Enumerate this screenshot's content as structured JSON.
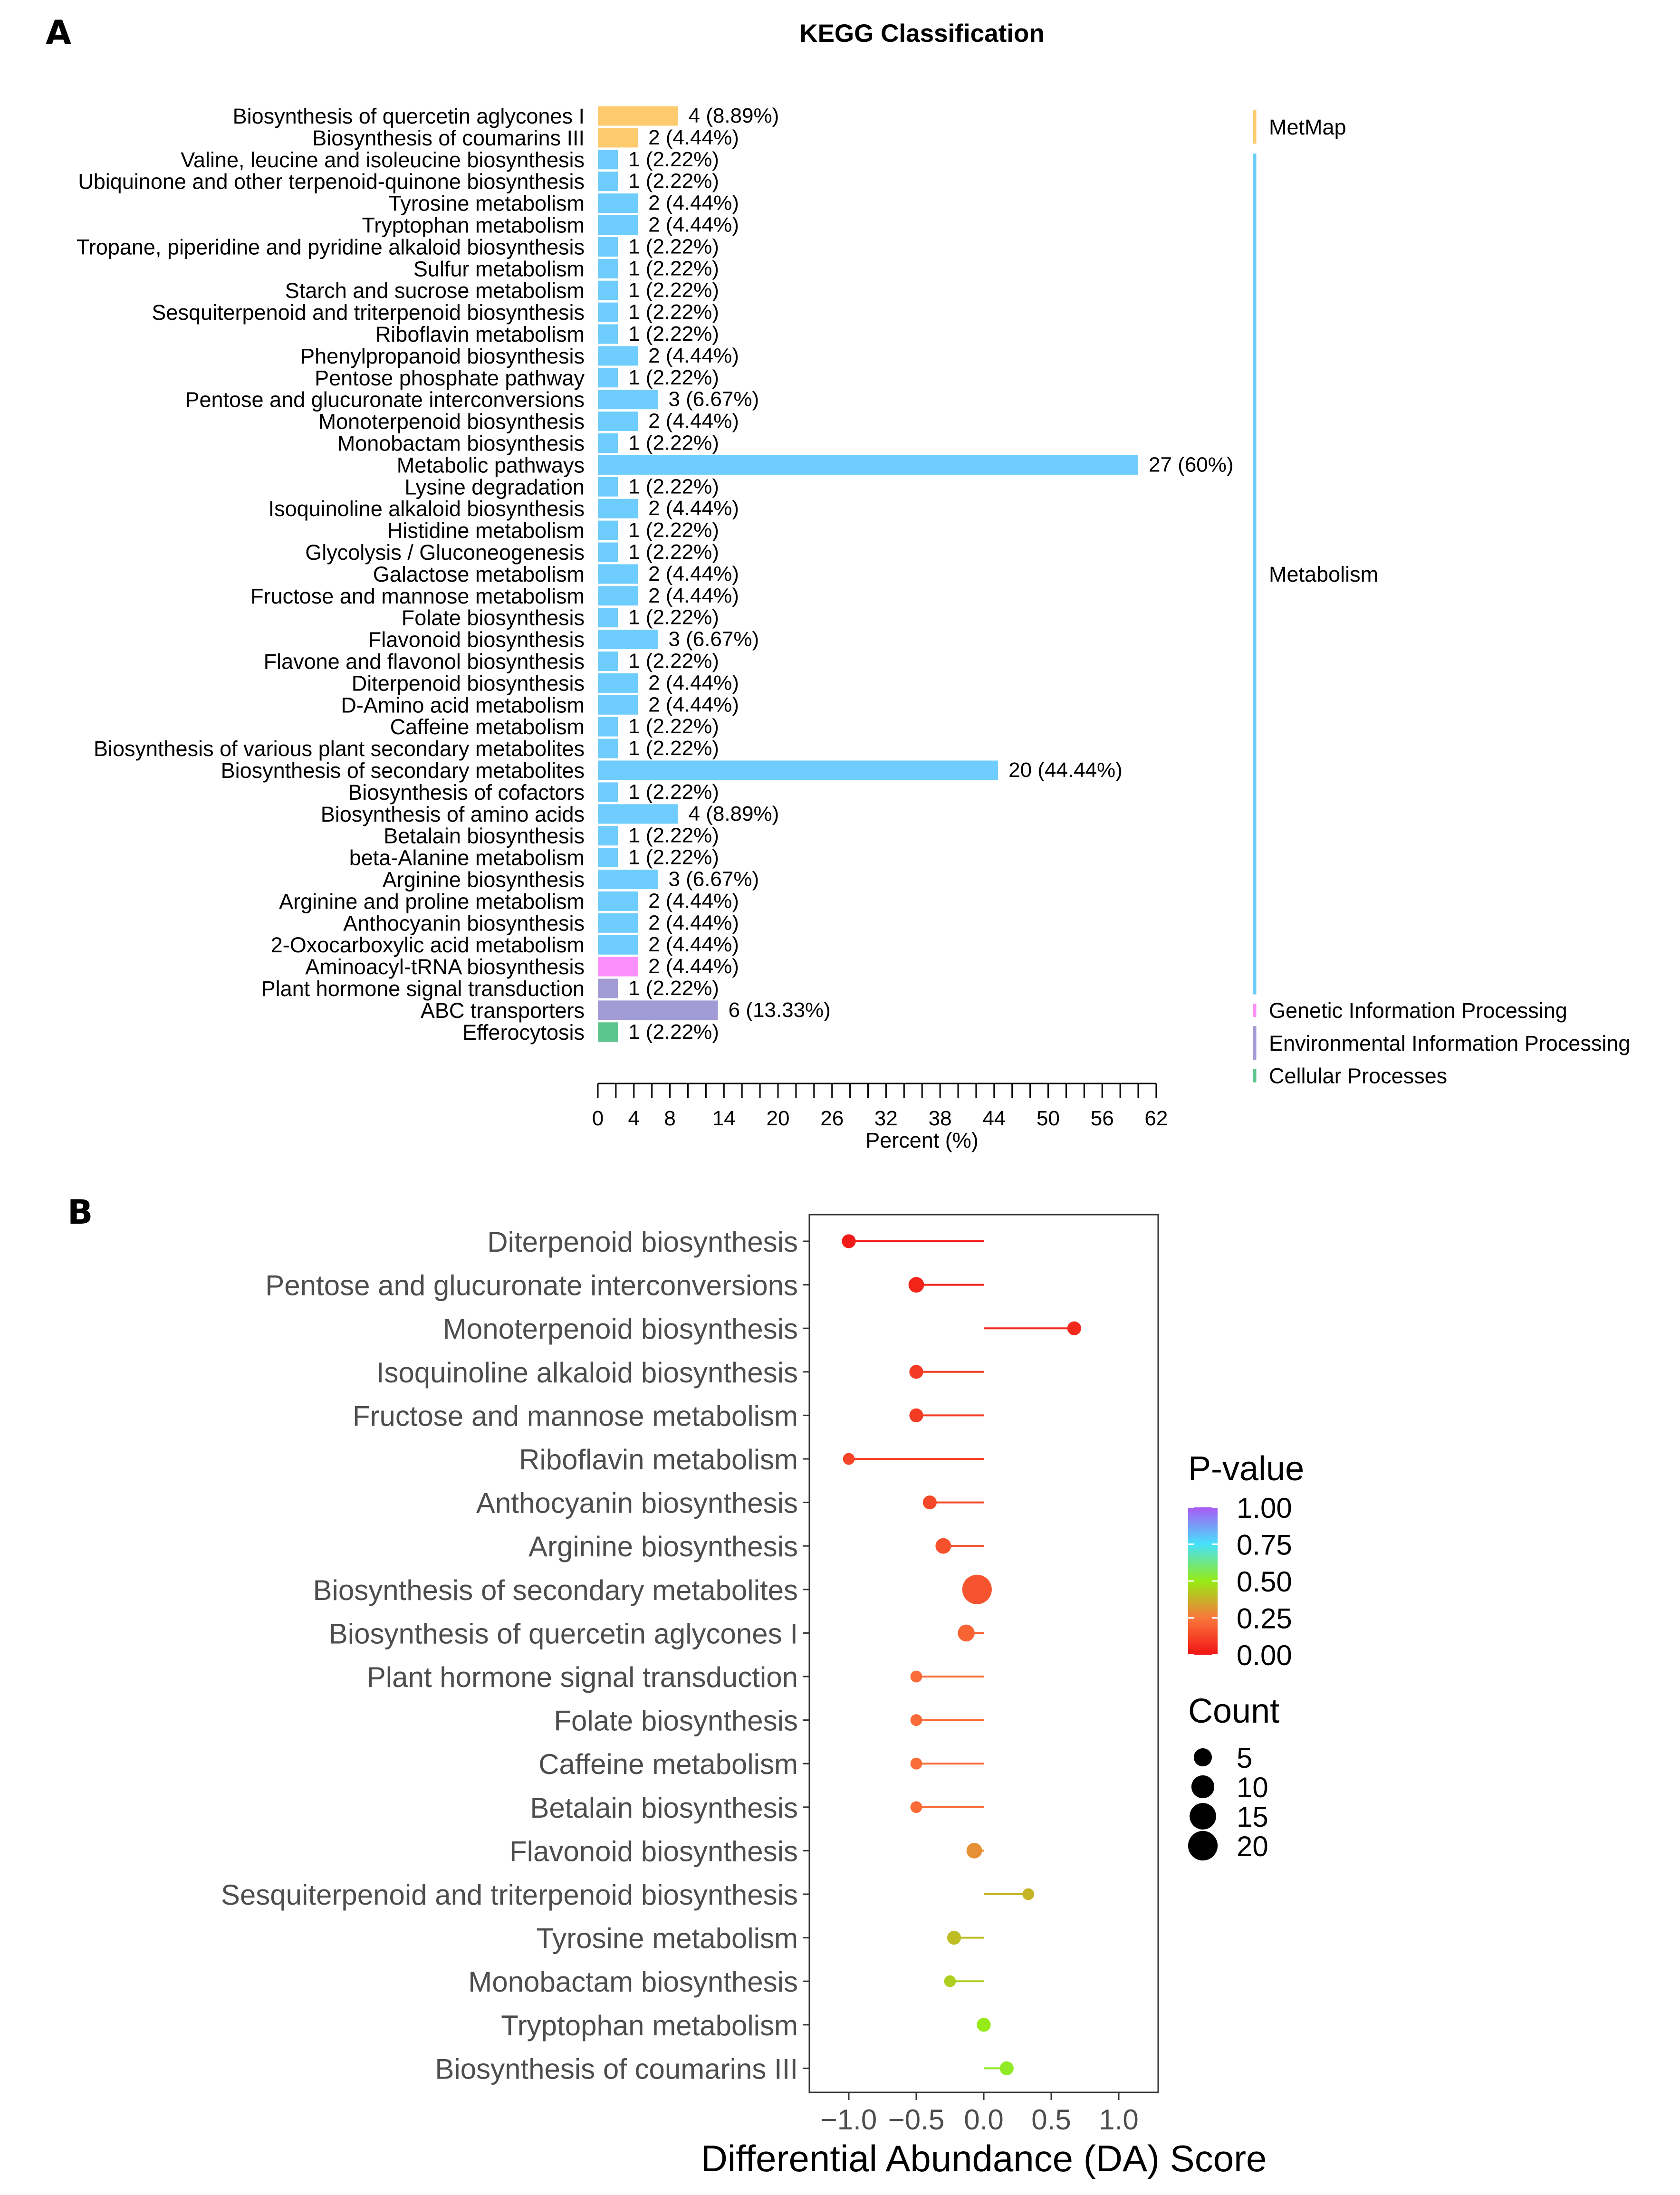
{
  "panel_a_label": "A",
  "panel_b_label": "B",
  "chart_data": [
    {
      "type": "bar",
      "title": "KEGG Classification",
      "xlabel": "Percent (%)",
      "ylabel": "",
      "xlim": [
        0,
        62
      ],
      "xticks": [
        "0",
        "4",
        "8",
        "14",
        "20",
        "26",
        "32",
        "38",
        "44",
        "50",
        "56",
        "62"
      ],
      "xtick_values": [
        0,
        4,
        8,
        14,
        20,
        26,
        32,
        38,
        44,
        50,
        56,
        62
      ],
      "legend_position": "right",
      "colors": {
        "MetMap": "#FDCB6E",
        "Metabolism": "#6ECDFC",
        "Genetic Information Processing": "#FC90FA",
        "Environmental Information Processing": "#A19BD6",
        "Cellular Processes": "#5DC58E"
      },
      "groups": [
        {
          "name": "MetMap",
          "first": 0,
          "last": 1
        },
        {
          "name": "Metabolism",
          "first": 2,
          "last": 40
        },
        {
          "name": "Genetic Information Processing",
          "first": 41,
          "last": 41
        },
        {
          "name": "Environmental Information Processing",
          "first": 42,
          "last": 43
        },
        {
          "name": "Cellular Processes",
          "first": 44,
          "last": 44
        }
      ],
      "bars": [
        {
          "category": "Biosynthesis of quercetin aglycones I",
          "count": 4,
          "value": 8.89,
          "label": "4 (8.89%)",
          "group": "MetMap"
        },
        {
          "category": "Biosynthesis of coumarins III",
          "count": 2,
          "value": 4.44,
          "label": "2 (4.44%)",
          "group": "MetMap"
        },
        {
          "category": "Valine, leucine and isoleucine biosynthesis",
          "count": 1,
          "value": 2.22,
          "label": "1 (2.22%)",
          "group": "Metabolism"
        },
        {
          "category": "Ubiquinone and other terpenoid-quinone biosynthesis",
          "count": 1,
          "value": 2.22,
          "label": "1 (2.22%)",
          "group": "Metabolism"
        },
        {
          "category": "Tyrosine metabolism",
          "count": 2,
          "value": 4.44,
          "label": "2 (4.44%)",
          "group": "Metabolism"
        },
        {
          "category": "Tryptophan metabolism",
          "count": 2,
          "value": 4.44,
          "label": "2 (4.44%)",
          "group": "Metabolism"
        },
        {
          "category": "Tropane, piperidine and pyridine alkaloid biosynthesis",
          "count": 1,
          "value": 2.22,
          "label": "1 (2.22%)",
          "group": "Metabolism"
        },
        {
          "category": "Sulfur metabolism",
          "count": 1,
          "value": 2.22,
          "label": "1 (2.22%)",
          "group": "Metabolism"
        },
        {
          "category": "Starch and sucrose metabolism",
          "count": 1,
          "value": 2.22,
          "label": "1 (2.22%)",
          "group": "Metabolism"
        },
        {
          "category": "Sesquiterpenoid and triterpenoid biosynthesis",
          "count": 1,
          "value": 2.22,
          "label": "1 (2.22%)",
          "group": "Metabolism"
        },
        {
          "category": "Riboflavin metabolism",
          "count": 1,
          "value": 2.22,
          "label": "1 (2.22%)",
          "group": "Metabolism"
        },
        {
          "category": "Phenylpropanoid biosynthesis",
          "count": 2,
          "value": 4.44,
          "label": "2 (4.44%)",
          "group": "Metabolism"
        },
        {
          "category": "Pentose phosphate pathway",
          "count": 1,
          "value": 2.22,
          "label": "1 (2.22%)",
          "group": "Metabolism"
        },
        {
          "category": "Pentose and glucuronate interconversions",
          "count": 3,
          "value": 6.67,
          "label": "3 (6.67%)",
          "group": "Metabolism"
        },
        {
          "category": "Monoterpenoid biosynthesis",
          "count": 2,
          "value": 4.44,
          "label": "2 (4.44%)",
          "group": "Metabolism"
        },
        {
          "category": "Monobactam biosynthesis",
          "count": 1,
          "value": 2.22,
          "label": "1 (2.22%)",
          "group": "Metabolism"
        },
        {
          "category": "Metabolic pathways",
          "count": 27,
          "value": 60,
          "label": "27 (60%)",
          "group": "Metabolism"
        },
        {
          "category": "Lysine degradation",
          "count": 1,
          "value": 2.22,
          "label": "1 (2.22%)",
          "group": "Metabolism"
        },
        {
          "category": "Isoquinoline alkaloid biosynthesis",
          "count": 2,
          "value": 4.44,
          "label": "2 (4.44%)",
          "group": "Metabolism"
        },
        {
          "category": "Histidine metabolism",
          "count": 1,
          "value": 2.22,
          "label": "1 (2.22%)",
          "group": "Metabolism"
        },
        {
          "category": "Glycolysis / Gluconeogenesis",
          "count": 1,
          "value": 2.22,
          "label": "1 (2.22%)",
          "group": "Metabolism"
        },
        {
          "category": "Galactose metabolism",
          "count": 2,
          "value": 4.44,
          "label": "2 (4.44%)",
          "group": "Metabolism"
        },
        {
          "category": "Fructose and mannose metabolism",
          "count": 2,
          "value": 4.44,
          "label": "2 (4.44%)",
          "group": "Metabolism"
        },
        {
          "category": "Folate biosynthesis",
          "count": 1,
          "value": 2.22,
          "label": "1 (2.22%)",
          "group": "Metabolism"
        },
        {
          "category": "Flavonoid biosynthesis",
          "count": 3,
          "value": 6.67,
          "label": "3 (6.67%)",
          "group": "Metabolism"
        },
        {
          "category": "Flavone and flavonol biosynthesis",
          "count": 1,
          "value": 2.22,
          "label": "1 (2.22%)",
          "group": "Metabolism"
        },
        {
          "category": "Diterpenoid biosynthesis",
          "count": 2,
          "value": 4.44,
          "label": "2 (4.44%)",
          "group": "Metabolism"
        },
        {
          "category": "D-Amino acid metabolism",
          "count": 2,
          "value": 4.44,
          "label": "2 (4.44%)",
          "group": "Metabolism"
        },
        {
          "category": "Caffeine metabolism",
          "count": 1,
          "value": 2.22,
          "label": "1 (2.22%)",
          "group": "Metabolism"
        },
        {
          "category": "Biosynthesis of various plant secondary metabolites",
          "count": 1,
          "value": 2.22,
          "label": "1 (2.22%)",
          "group": "Metabolism"
        },
        {
          "category": "Biosynthesis of secondary metabolites",
          "count": 20,
          "value": 44.44,
          "label": "20 (44.44%)",
          "group": "Metabolism"
        },
        {
          "category": "Biosynthesis of cofactors",
          "count": 1,
          "value": 2.22,
          "label": "1 (2.22%)",
          "group": "Metabolism"
        },
        {
          "category": "Biosynthesis of amino acids",
          "count": 4,
          "value": 8.89,
          "label": "4 (8.89%)",
          "group": "Metabolism"
        },
        {
          "category": "Betalain biosynthesis",
          "count": 1,
          "value": 2.22,
          "label": "1 (2.22%)",
          "group": "Metabolism"
        },
        {
          "category": "beta-Alanine metabolism",
          "count": 1,
          "value": 2.22,
          "label": "1 (2.22%)",
          "group": "Metabolism"
        },
        {
          "category": "Arginine biosynthesis",
          "count": 3,
          "value": 6.67,
          "label": "3 (6.67%)",
          "group": "Metabolism"
        },
        {
          "category": "Arginine and proline metabolism",
          "count": 2,
          "value": 4.44,
          "label": "2 (4.44%)",
          "group": "Metabolism"
        },
        {
          "category": "Anthocyanin biosynthesis",
          "count": 2,
          "value": 4.44,
          "label": "2 (4.44%)",
          "group": "Metabolism"
        },
        {
          "category": "2-Oxocarboxylic acid metabolism",
          "count": 2,
          "value": 4.44,
          "label": "2 (4.44%)",
          "group": "Metabolism"
        },
        {
          "category": "Aminoacyl-tRNA biosynthesis",
          "count": 2,
          "value": 4.44,
          "label": "2 (4.44%)",
          "group": "Genetic Information Processing"
        },
        {
          "category": "Plant hormone signal transduction",
          "count": 1,
          "value": 2.22,
          "label": "1 (2.22%)",
          "group": "Environmental Information Processing"
        },
        {
          "category": "ABC transporters",
          "count": 6,
          "value": 13.33,
          "label": "6 (13.33%)",
          "group": "Environmental Information Processing"
        },
        {
          "category": "Efferocytosis",
          "count": 1,
          "value": 2.22,
          "label": "1 (2.22%)",
          "group": "Cellular Processes"
        }
      ]
    },
    {
      "type": "scatter",
      "title": "",
      "xlabel": "Differential Abundance (DA) Score",
      "ylabel": "",
      "xlim": [
        -1.3,
        1.3
      ],
      "xticks": [
        "−1.0",
        "−0.5",
        "0.0",
        "0.5",
        "1.0"
      ],
      "xtick_values": [
        -1.0,
        -0.5,
        0.0,
        0.5,
        1.0
      ],
      "grid": false,
      "legend_position": "right",
      "color_legend_title": "P-value",
      "color_legend_ticks": [
        "1.00",
        "0.75",
        "0.50",
        "0.25",
        "0.00"
      ],
      "color_legend_tick_values": [
        1.0,
        0.75,
        0.5,
        0.25,
        0.0
      ],
      "size_legend_title": "Count",
      "size_legend_ticks": [
        "5",
        "10",
        "15",
        "20"
      ],
      "size_legend_tick_values": [
        5,
        10,
        15,
        20
      ],
      "points": [
        {
          "category": "Diterpenoid biosynthesis",
          "score": -1.0,
          "count": 2,
          "pvalue": 0.02
        },
        {
          "category": "Pentose and glucuronate interconversions",
          "score": -0.5,
          "count": 3,
          "pvalue": 0.04
        },
        {
          "category": "Monoterpenoid biosynthesis",
          "score": 0.67,
          "count": 2,
          "pvalue": 0.05
        },
        {
          "category": "Isoquinoline alkaloid biosynthesis",
          "score": -0.5,
          "count": 2,
          "pvalue": 0.1
        },
        {
          "category": "Fructose and mannose metabolism",
          "score": -0.5,
          "count": 2,
          "pvalue": 0.1
        },
        {
          "category": "Riboflavin metabolism",
          "score": -1.0,
          "count": 1,
          "pvalue": 0.12
        },
        {
          "category": "Anthocyanin biosynthesis",
          "score": -0.4,
          "count": 2,
          "pvalue": 0.13
        },
        {
          "category": "Arginine biosynthesis",
          "score": -0.3,
          "count": 3,
          "pvalue": 0.15
        },
        {
          "category": "Biosynthesis of secondary metabolites",
          "score": -0.05,
          "count": 20,
          "pvalue": 0.16
        },
        {
          "category": "Biosynthesis of quercetin aglycones I",
          "score": -0.13,
          "count": 4,
          "pvalue": 0.2
        },
        {
          "category": "Plant hormone signal transduction",
          "score": -0.5,
          "count": 1,
          "pvalue": 0.22
        },
        {
          "category": "Folate biosynthesis",
          "score": -0.5,
          "count": 1,
          "pvalue": 0.22
        },
        {
          "category": "Caffeine metabolism",
          "score": -0.5,
          "count": 1,
          "pvalue": 0.22
        },
        {
          "category": "Betalain biosynthesis",
          "score": -0.5,
          "count": 1,
          "pvalue": 0.22
        },
        {
          "category": "Flavonoid biosynthesis",
          "score": -0.07,
          "count": 3,
          "pvalue": 0.3
        },
        {
          "category": "Sesquiterpenoid and triterpenoid biosynthesis",
          "score": 0.33,
          "count": 1,
          "pvalue": 0.38
        },
        {
          "category": "Tyrosine metabolism",
          "score": -0.22,
          "count": 2,
          "pvalue": 0.4
        },
        {
          "category": "Monobactam biosynthesis",
          "score": -0.25,
          "count": 1,
          "pvalue": 0.44
        },
        {
          "category": "Tryptophan metabolism",
          "score": 0.0,
          "count": 2,
          "pvalue": 0.5
        },
        {
          "category": "Biosynthesis of coumarins III",
          "score": 0.17,
          "count": 2,
          "pvalue": 0.52
        }
      ]
    }
  ]
}
